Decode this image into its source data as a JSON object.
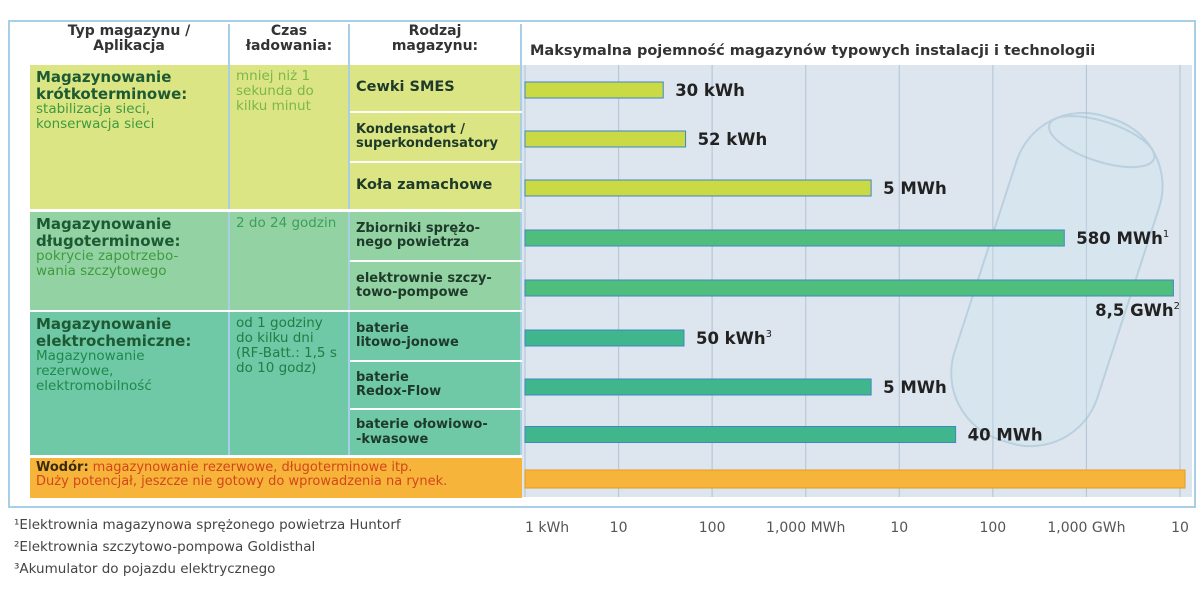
{
  "table": {
    "headers": [
      "Typ magazynu /\nAplikacja",
      "Czas\nładowania:",
      "Rodzaj\nmagazynu:"
    ],
    "groups": [
      {
        "title": "Magazynowanie krótkoterminowe:",
        "description": "stabilizacja sieci, konserwacja sieci",
        "charging_time": "mniej niż 1 sekunda do kilku minut",
        "color": "#dbe583"
      },
      {
        "title": "Magazynowanie długoterminowe:",
        "description": "pokrycie zapotrzebo-\nwania szczytowego",
        "charging_time": "2 do 24 godzin",
        "color": "#93d3a3"
      },
      {
        "title": "Magazynowanie elektrochemiczne:",
        "description": "Magazynowanie rezerwowe, elektromobilność",
        "charging_time": "od 1 godziny do kilku dni (RF-Batt.: 1,5 s do 10 godz)",
        "color": "#6fc8a6"
      }
    ],
    "hydrogen": {
      "title": "Wodór:",
      "lines": [
        "magazynowanie rezerwowe, długoterminowe itp.",
        "Duży potencjał, jeszcze nie gotowy do wprowadzenia na rynek."
      ]
    }
  },
  "chart_data": {
    "type": "bar",
    "orientation": "horizontal",
    "title": "Maksymalna pojemność magazynów typowych instalacji i technologii",
    "categories": [
      "Cewki SMES",
      "Kondensatort /\nsuperkondensatory",
      "Koła zamachowe",
      "Zbiorniki sprężo-\nnego powietrza",
      "elektrownie szczy-\ntowo-pompowe",
      "baterie\nlitowo-jonowe",
      "baterie\nRedox-Flow",
      "baterie ołowiowo-\n-kwasowe"
    ],
    "values": [
      30,
      52,
      5000,
      580000,
      8500000,
      50,
      5000,
      40000
    ],
    "value_labels": [
      "30 kWh",
      "52 kWh",
      "5 MWh",
      "580 MWh",
      "8,5 GWh",
      "50 kWh",
      "5 MWh",
      "40 MWh"
    ],
    "value_label_refs": [
      null,
      null,
      null,
      "1",
      "2",
      "3",
      null,
      null
    ],
    "colors": [
      "#c9da45",
      "#c9da45",
      "#c9da45",
      "#4fbd7c",
      "#4fbd7c",
      "#3fb68c",
      "#3fb68c",
      "#3fb68c"
    ],
    "xlim": [
      1,
      10000000
    ],
    "log_scale": true,
    "xticks": [
      {
        "value": 1,
        "label": "1 kWh"
      },
      10,
      100,
      {
        "value": 1000,
        "label": "1,000  MWh"
      },
      {
        "value": 10000,
        "label": "10"
      },
      {
        "value": 100000,
        "label": "100"
      },
      {
        "value": 1000000,
        "label": "1,000  GWh"
      },
      {
        "value": 10000000,
        "label": "10"
      }
    ],
    "grid": true
  },
  "footnotes": [
    "¹Elektrownia magazynowa sprężonego powietrza Huntorf",
    "²Elektrownia szczytowo-pompowa Goldisthal",
    "³Akumulator do pojazdu elektrycznego"
  ]
}
